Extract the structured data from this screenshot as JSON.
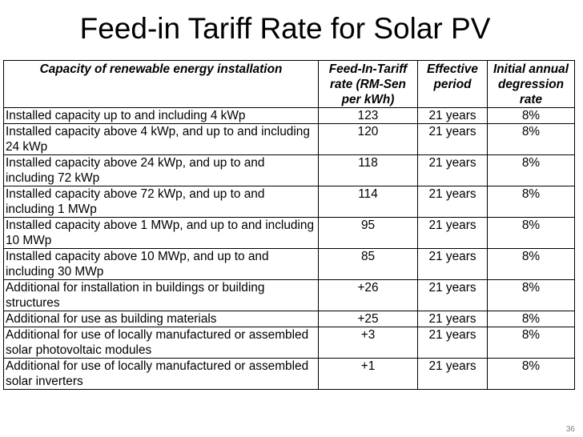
{
  "title": "Feed-in Tariff Rate for Solar PV",
  "table": {
    "headers": [
      "Capacity of renewable energy installation",
      "Feed-In-Tariff rate (RM-Sen per kWh)",
      "Effective period",
      "Initial annual degression rate"
    ],
    "rows": [
      {
        "capacity": "Installed capacity up to and including 4 kWp",
        "rate": "123",
        "period": "21 years",
        "degression": "8%"
      },
      {
        "capacity": "Installed capacity above 4 kWp, and up to and including 24 kWp",
        "rate": "120",
        "period": "21 years",
        "degression": "8%"
      },
      {
        "capacity": "Installed capacity above 24 kWp, and up to and including 72 kWp",
        "rate": "118",
        "period": "21 years",
        "degression": "8%"
      },
      {
        "capacity": "Installed capacity above 72 kWp, and up to and including 1 MWp",
        "rate": "114",
        "period": "21 years",
        "degression": "8%"
      },
      {
        "capacity": "Installed capacity above 1 MWp, and up to and including 10 MWp",
        "rate": "95",
        "period": "21 years",
        "degression": "8%"
      },
      {
        "capacity": "Installed capacity above 10 MWp, and up to and including 30 MWp",
        "rate": "85",
        "period": "21 years",
        "degression": "8%"
      },
      {
        "capacity": "Additional for installation in buildings or building structures",
        "rate": "+26",
        "period": "21 years",
        "degression": "8%"
      },
      {
        "capacity": "Additional for use as building materials",
        "rate": "+25",
        "period": "21 years",
        "degression": "8%"
      },
      {
        "capacity": "Additional for use of locally manufactured or assembled solar photovoltaic modules",
        "rate": "+3",
        "period": "21 years",
        "degression": "8%"
      },
      {
        "capacity": "Additional for use of locally manufactured or assembled solar inverters",
        "rate": "+1",
        "period": "21 years",
        "degression": "8%"
      }
    ]
  },
  "page_number": "36"
}
